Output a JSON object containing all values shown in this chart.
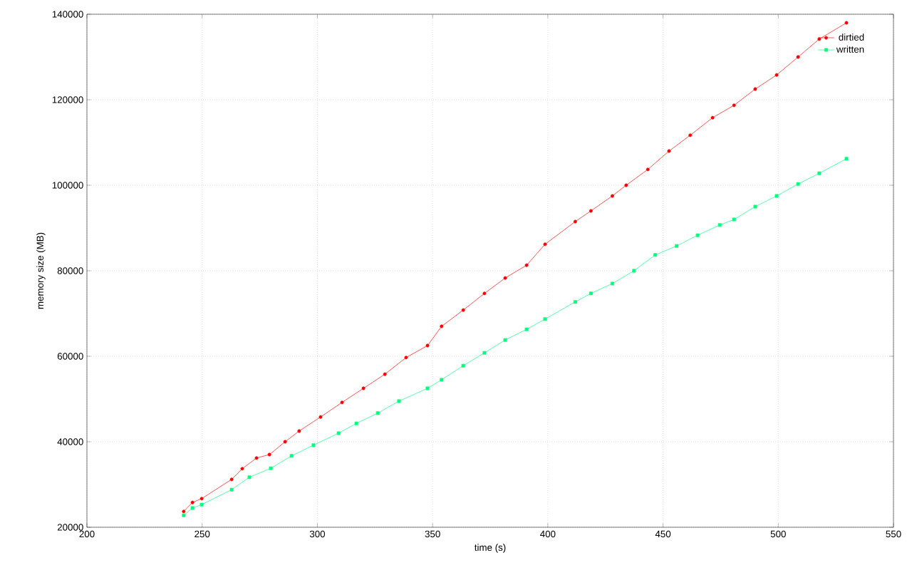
{
  "chart_data": {
    "type": "line",
    "xlabel": "time (s)",
    "ylabel": "memory size (MB)",
    "xlim": [
      200,
      550
    ],
    "xticks": [
      200,
      250,
      300,
      350,
      400,
      450,
      500,
      550
    ],
    "ylim": [
      20000,
      140000
    ],
    "yticks": [
      20000,
      40000,
      60000,
      80000,
      100000,
      120000,
      140000
    ],
    "grid": true,
    "legend": "top right",
    "series": [
      {
        "name": "dirtied",
        "color": "#ff0000",
        "marker": "circle",
        "x": [
          242,
          245.8,
          249.8,
          262.8,
          267.4,
          273.6,
          279.2,
          286,
          292.1,
          301.4,
          310.7,
          320,
          329.3,
          338.5,
          347.8,
          353.9,
          363.3,
          372.5,
          381.5,
          390.8,
          398.8,
          411.9,
          418.7,
          428,
          434,
          443.4,
          452.6,
          461.8,
          471.5,
          480.8,
          490,
          499.3,
          508.6,
          517.8,
          529.6
        ],
        "values": [
          23700,
          25800,
          26700,
          31200,
          33700,
          36200,
          37000,
          40000,
          42500,
          45800,
          49200,
          52500,
          55800,
          59700,
          62500,
          67000,
          70800,
          74700,
          78300,
          81300,
          86200,
          91500,
          94000,
          97500,
          100000,
          103700,
          108000,
          111700,
          115800,
          118700,
          122500,
          125800,
          130000,
          134200,
          138000
        ]
      },
      {
        "name": "written",
        "color": "#00ff7f",
        "marker": "square",
        "x": [
          242,
          245.8,
          249.8,
          262.8,
          270.5,
          279.8,
          288.8,
          298.3,
          309.2,
          316.9,
          326.2,
          335.4,
          347.8,
          353.9,
          363.3,
          372.5,
          381.5,
          390.8,
          398.8,
          411.9,
          418.7,
          428,
          437.4,
          446.6,
          455.9,
          465,
          474.6,
          480.8,
          490,
          499.3,
          508.6,
          517.8,
          529.6
        ],
        "values": [
          22800,
          24500,
          25300,
          28800,
          31700,
          33800,
          36700,
          39200,
          42000,
          44300,
          46700,
          49500,
          52500,
          54500,
          57800,
          60800,
          63800,
          66300,
          68700,
          72700,
          74700,
          77000,
          80000,
          83700,
          85800,
          88300,
          90700,
          92000,
          95000,
          97500,
          100300,
          102800,
          106200
        ]
      }
    ]
  }
}
